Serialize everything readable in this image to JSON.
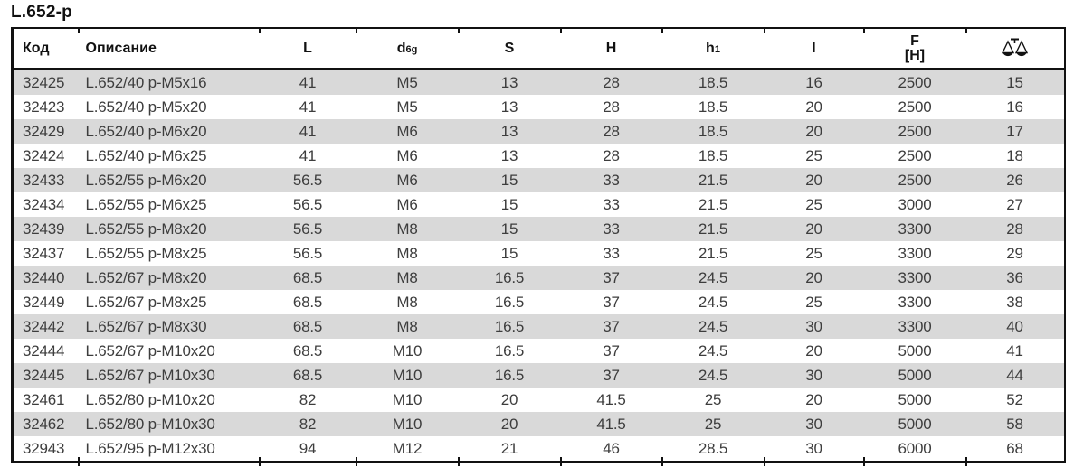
{
  "page": {
    "title": "L.652-p"
  },
  "colors": {
    "alt_row_background": "#d9d9d9",
    "border": "#111111",
    "data_text": "#3d3d3d"
  },
  "table": {
    "headers": [
      {
        "label": "Код"
      },
      {
        "label": "Описание"
      },
      {
        "label": "L"
      },
      {
        "label": "d",
        "sub": "6g"
      },
      {
        "label": "S"
      },
      {
        "label": "H"
      },
      {
        "label": "h",
        "sub": "1"
      },
      {
        "label": "l"
      },
      {
        "label": "F",
        "line2": "[H]"
      },
      {
        "icon": "scales-icon"
      }
    ],
    "rows": [
      [
        "32425",
        "L.652/40 p-M5x16",
        "41",
        "M5",
        "13",
        "28",
        "18.5",
        "16",
        "2500",
        "15"
      ],
      [
        "32423",
        "L.652/40 p-M5x20",
        "41",
        "M5",
        "13",
        "28",
        "18.5",
        "20",
        "2500",
        "16"
      ],
      [
        "32429",
        "L.652/40 p-M6x20",
        "41",
        "M6",
        "13",
        "28",
        "18.5",
        "20",
        "2500",
        "17"
      ],
      [
        "32424",
        "L.652/40 p-M6x25",
        "41",
        "M6",
        "13",
        "28",
        "18.5",
        "25",
        "2500",
        "18"
      ],
      [
        "32433",
        "L.652/55 p-M6x20",
        "56.5",
        "M6",
        "15",
        "33",
        "21.5",
        "20",
        "2500",
        "26"
      ],
      [
        "32434",
        "L.652/55 p-M6x25",
        "56.5",
        "M6",
        "15",
        "33",
        "21.5",
        "25",
        "3000",
        "27"
      ],
      [
        "32439",
        "L.652/55 p-M8x20",
        "56.5",
        "M8",
        "15",
        "33",
        "21.5",
        "20",
        "3300",
        "28"
      ],
      [
        "32437",
        "L.652/55 p-M8x25",
        "56.5",
        "M8",
        "15",
        "33",
        "21.5",
        "25",
        "3300",
        "29"
      ],
      [
        "32440",
        "L.652/67 p-M8x20",
        "68.5",
        "M8",
        "16.5",
        "37",
        "24.5",
        "20",
        "3300",
        "36"
      ],
      [
        "32449",
        "L.652/67 p-M8x25",
        "68.5",
        "M8",
        "16.5",
        "37",
        "24.5",
        "25",
        "3300",
        "38"
      ],
      [
        "32442",
        "L.652/67 p-M8x30",
        "68.5",
        "M8",
        "16.5",
        "37",
        "24.5",
        "30",
        "3300",
        "40"
      ],
      [
        "32444",
        "L.652/67 p-M10x20",
        "68.5",
        "M10",
        "16.5",
        "37",
        "24.5",
        "20",
        "5000",
        "41"
      ],
      [
        "32445",
        "L.652/67 p-M10x30",
        "68.5",
        "M10",
        "16.5",
        "37",
        "24.5",
        "30",
        "5000",
        "44"
      ],
      [
        "32461",
        "L.652/80 p-M10x20",
        "82",
        "M10",
        "20",
        "41.5",
        "25",
        "20",
        "5000",
        "52"
      ],
      [
        "32462",
        "L.652/80 p-M10x30",
        "82",
        "M10",
        "20",
        "41.5",
        "25",
        "30",
        "5000",
        "58"
      ],
      [
        "32943",
        "L.652/95 p-M12x30",
        "94",
        "M12",
        "21",
        "46",
        "28.5",
        "30",
        "6000",
        "68"
      ]
    ]
  }
}
